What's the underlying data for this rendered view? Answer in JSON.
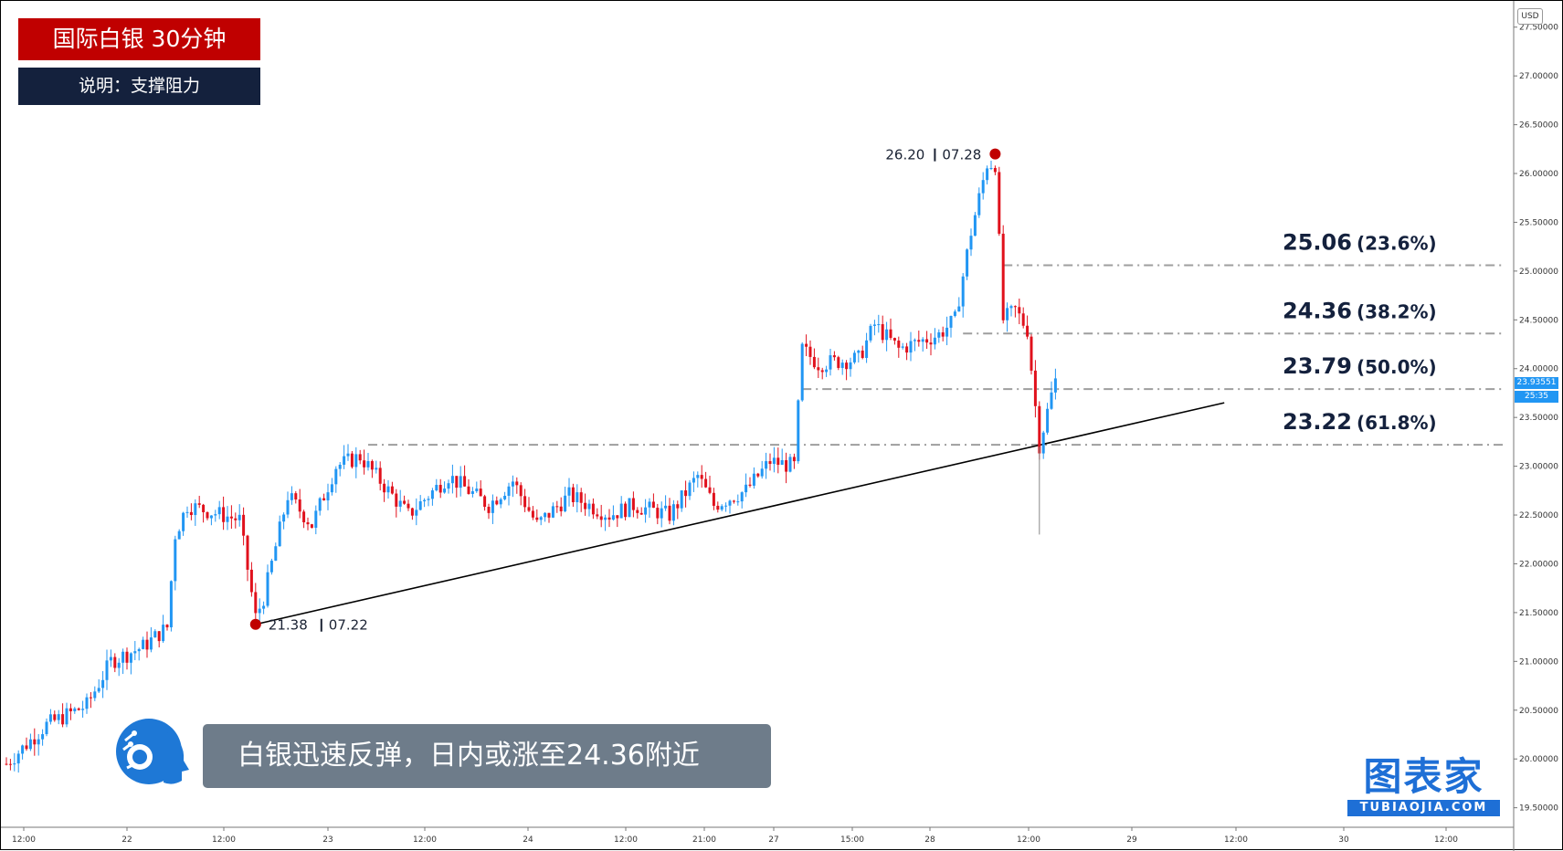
{
  "header": {
    "title": "国际白银 30分钟",
    "subtitle": "说明：支撑阻力"
  },
  "caption": "白银迅速反弹，日内或涨至24.36附近",
  "brand": {
    "name": "图表家",
    "sub": "TUBIAOJIA.COM"
  },
  "currency_button": "USD",
  "last_price_label": "23.93551",
  "countdown_label": "25:35",
  "colors": {
    "up": "#2196f3",
    "down": "#e0111c",
    "title_bg": "#c00000",
    "subtitle_bg": "#14213d",
    "caption_bg": "#6e7c8a",
    "brand": "#1e6fd6",
    "fib_line": "#9e9e9e",
    "trend_line": "#000000",
    "marker": "#c00000"
  },
  "chart_data": {
    "type": "candlestick",
    "symbol": "国际白银",
    "timeframe": "30分钟",
    "currency": "USD",
    "ylim": [
      19.3,
      27.75
    ],
    "y_ticks": [
      "19.50000",
      "20.00000",
      "20.50000",
      "21.00000",
      "21.50000",
      "22.00000",
      "22.50000",
      "23.00000",
      "23.50000",
      "24.00000",
      "24.50000",
      "25.00000",
      "25.50000",
      "26.00000",
      "26.50000",
      "27.00000",
      "27.50000"
    ],
    "x_ticks": [
      "12:00",
      "22",
      "12:00",
      "23",
      "12:00",
      "24",
      "12:00",
      "21:00",
      "27",
      "15:00",
      "28",
      "12:00",
      "29",
      "12:00",
      "30",
      "12:00"
    ],
    "anchors": [
      {
        "t": 0,
        "p": 19.95
      },
      {
        "t": 10,
        "p": 20.35
      },
      {
        "t": 20,
        "p": 20.55
      },
      {
        "t": 26,
        "p": 21.0
      },
      {
        "t": 34,
        "p": 21.15
      },
      {
        "t": 40,
        "p": 21.35
      },
      {
        "t": 42,
        "p": 22.3
      },
      {
        "t": 45,
        "p": 22.6
      },
      {
        "t": 58,
        "p": 22.45
      },
      {
        "t": 60,
        "p": 21.95
      },
      {
        "t": 62,
        "p": 21.45
      },
      {
        "t": 64,
        "p": 21.65
      },
      {
        "t": 70,
        "p": 22.7
      },
      {
        "t": 76,
        "p": 22.4
      },
      {
        "t": 82,
        "p": 23.0
      },
      {
        "t": 88,
        "p": 23.1
      },
      {
        "t": 94,
        "p": 22.8
      },
      {
        "t": 100,
        "p": 22.5
      },
      {
        "t": 110,
        "p": 22.9
      },
      {
        "t": 120,
        "p": 22.6
      },
      {
        "t": 126,
        "p": 22.85
      },
      {
        "t": 132,
        "p": 22.4
      },
      {
        "t": 140,
        "p": 22.7
      },
      {
        "t": 150,
        "p": 22.5
      },
      {
        "t": 156,
        "p": 22.6
      },
      {
        "t": 165,
        "p": 22.5
      },
      {
        "t": 172,
        "p": 22.9
      },
      {
        "t": 176,
        "p": 22.6
      },
      {
        "t": 184,
        "p": 22.75
      },
      {
        "t": 190,
        "p": 23.05
      },
      {
        "t": 196,
        "p": 23.0
      },
      {
        "t": 198,
        "p": 24.2
      },
      {
        "t": 202,
        "p": 24.05
      },
      {
        "t": 212,
        "p": 24.1
      },
      {
        "t": 216,
        "p": 24.45
      },
      {
        "t": 222,
        "p": 24.2
      },
      {
        "t": 232,
        "p": 24.35
      },
      {
        "t": 236,
        "p": 24.5
      },
      {
        "t": 240,
        "p": 25.4
      },
      {
        "t": 244,
        "p": 26.1
      },
      {
        "t": 246,
        "p": 26.1
      },
      {
        "t": 248,
        "p": 24.5
      },
      {
        "t": 251,
        "p": 24.6
      },
      {
        "t": 254,
        "p": 24.4
      },
      {
        "t": 257,
        "p": 23.22
      },
      {
        "t": 261,
        "p": 23.9
      }
    ],
    "annotations": [
      {
        "label_price": "26.20",
        "label_date": "07.28",
        "price": 26.2,
        "t": 246,
        "type": "swing-high"
      },
      {
        "label_price": "21.38",
        "label_date": "07.22",
        "price": 21.38,
        "t": 62,
        "type": "swing-low"
      }
    ],
    "trendline": {
      "from": {
        "t": 62,
        "price": 21.38
      },
      "to": {
        "t": 303,
        "price": 23.65
      }
    },
    "fib_levels": [
      {
        "price_label": "25.06",
        "pct_label": "(23.6%)",
        "value": 25.06,
        "start_t": 248
      },
      {
        "price_label": "24.36",
        "pct_label": "(38.2%)",
        "value": 24.36,
        "start_t": 238
      },
      {
        "price_label": "23.79",
        "pct_label": "(50.0%)",
        "value": 23.79,
        "start_t": 198
      },
      {
        "price_label": "23.22",
        "pct_label": "(61.8%)",
        "value": 23.22,
        "start_t": 90
      }
    ]
  }
}
